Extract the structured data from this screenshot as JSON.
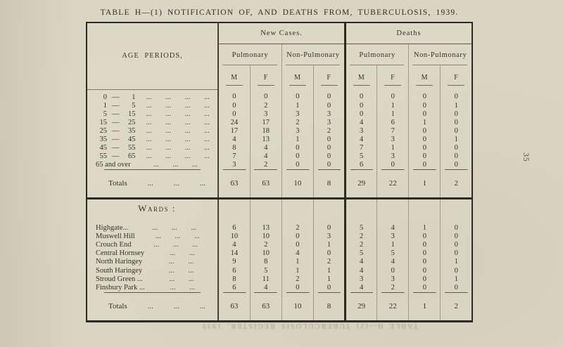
{
  "page": {
    "title": "TABLE H—(1) NOTIFICATION OF, AND DEATHS FROM, TUBERCULOSIS, 1939.",
    "page_number": "35",
    "bleed_through": "TABLE H—(2) TUBERCULOSIS REGISTER, 1939"
  },
  "table": {
    "age_header": "AGE PERIODS,",
    "groups": [
      {
        "label": "New Cases.",
        "subgroups": [
          "Pulmonary",
          "Non-Pulmonary"
        ]
      },
      {
        "label": "Deaths",
        "subgroups": [
          "Pulmonary",
          "Non-Pulmonary"
        ]
      }
    ],
    "sex_headers": [
      "M",
      "F",
      "M",
      "F",
      "M",
      "F",
      "M",
      "F"
    ],
    "age_rows": [
      {
        "from": "0",
        "to": "1",
        "leader": "... ... ... ...",
        "values": [
          0,
          0,
          0,
          0,
          0,
          0,
          0,
          0
        ]
      },
      {
        "from": "1",
        "to": "5",
        "leader": "... ... ... ...",
        "values": [
          0,
          2,
          1,
          0,
          0,
          1,
          0,
          1
        ]
      },
      {
        "from": "5",
        "to": "15",
        "leader": "... ... ... ...",
        "values": [
          0,
          3,
          3,
          3,
          0,
          1,
          0,
          0
        ]
      },
      {
        "from": "15",
        "to": "25",
        "leader": "... ... ... ...",
        "values": [
          24,
          17,
          2,
          3,
          4,
          6,
          1,
          0
        ]
      },
      {
        "from": "25",
        "to": "35",
        "leader": "... ... ... ...",
        "values": [
          17,
          18,
          3,
          2,
          3,
          7,
          0,
          0
        ]
      },
      {
        "from": "35",
        "to": "45",
        "leader": "... ... ... ...",
        "values": [
          4,
          13,
          1,
          0,
          4,
          3,
          0,
          1
        ]
      },
      {
        "from": "45",
        "to": "55",
        "leader": "... ... ... ...",
        "values": [
          8,
          4,
          0,
          0,
          7,
          1,
          0,
          0
        ]
      },
      {
        "from": "55",
        "to": "65",
        "leader": "... ... ... ...",
        "values": [
          7,
          4,
          0,
          0,
          5,
          3,
          0,
          0
        ]
      },
      {
        "label": "65 and over",
        "leader": "... ... ...",
        "values": [
          3,
          2,
          0,
          0,
          6,
          0,
          0,
          0
        ]
      }
    ],
    "age_totals": {
      "label": "Totals",
      "leader": "... ... ...",
      "values": [
        63,
        63,
        10,
        8,
        29,
        22,
        1,
        2
      ]
    },
    "wards_heading": "Wards :",
    "ward_rows": [
      {
        "label": "Highgate...",
        "leader": "... ... ...",
        "values": [
          6,
          13,
          2,
          0,
          5,
          4,
          1,
          0
        ]
      },
      {
        "label": "Muswell Hill",
        "leader": "... ... ...",
        "values": [
          10,
          10,
          0,
          3,
          2,
          3,
          0,
          0
        ]
      },
      {
        "label": "Crouch End",
        "leader": "... ... ...",
        "values": [
          4,
          2,
          0,
          1,
          2,
          1,
          0,
          0
        ]
      },
      {
        "label": "Central Hornsey",
        "leader": "... ...",
        "values": [
          14,
          10,
          4,
          0,
          5,
          5,
          0,
          0
        ]
      },
      {
        "label": "North Haringey",
        "leader": "... ...",
        "values": [
          9,
          8,
          1,
          2,
          4,
          4,
          0,
          1
        ]
      },
      {
        "label": "South Haringey",
        "leader": "... ...",
        "values": [
          6,
          5,
          1,
          1,
          4,
          0,
          0,
          0
        ]
      },
      {
        "label": "Stroud Green ...",
        "leader": "... ...",
        "values": [
          8,
          11,
          2,
          1,
          3,
          3,
          0,
          1
        ]
      },
      {
        "label": "Finsbury Park ...",
        "leader": "... ...",
        "values": [
          6,
          4,
          0,
          0,
          4,
          2,
          0,
          0
        ]
      }
    ],
    "ward_totals": {
      "label": "Totals",
      "leader": "... ... ...",
      "values": [
        63,
        63,
        10,
        8,
        29,
        22,
        1,
        2
      ]
    }
  }
}
